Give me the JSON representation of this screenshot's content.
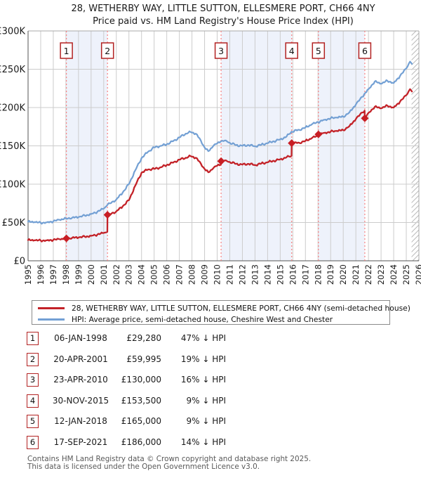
{
  "title": {
    "line1": "28, WETHERBY WAY, LITTLE SUTTON, ELLESMERE PORT, CH66 4NY",
    "line2": "Price paid vs. HM Land Registry's House Price Index (HPI)"
  },
  "legend": {
    "price_label": "28, WETHERBY WAY, LITTLE SUTTON, ELLESMERE PORT, CH66 4NY (semi-detached house)",
    "hpi_label": "HPI: Average price, semi-detached house, Cheshire West and Chester"
  },
  "footer": {
    "line1": "Contains HM Land Registry data © Crown copyright and database right 2025.",
    "line2": "This data is licensed under the Open Government Licence v3.0."
  },
  "colors": {
    "price_line": "#c32228",
    "hpi_line": "#73a0d4",
    "band": "#eef2fb",
    "grid": "#cccccc",
    "sale_dash": "#f88080",
    "marker_box_border": "#b22222",
    "marker_fill": "#c81e24",
    "axis_text": "#1a1a1a",
    "spine_dark": "#555555",
    "spine_light": "#aaaaaa",
    "hatch": "#bbbbbb"
  },
  "sales_table": {
    "rows": [
      {
        "n": "1",
        "date": "06-JAN-1998",
        "price": "£29,280",
        "vs_hpi": "47% ↓ HPI"
      },
      {
        "n": "2",
        "date": "20-APR-2001",
        "price": "£59,995",
        "vs_hpi": "19% ↓ HPI"
      },
      {
        "n": "3",
        "date": "23-APR-2010",
        "price": "£130,000",
        "vs_hpi": "16% ↓ HPI"
      },
      {
        "n": "4",
        "date": "30-NOV-2015",
        "price": "£153,500",
        "vs_hpi": "9% ↓ HPI"
      },
      {
        "n": "5",
        "date": "12-JAN-2018",
        "price": "£165,000",
        "vs_hpi": "9% ↓ HPI"
      },
      {
        "n": "6",
        "date": "17-SEP-2021",
        "price": "£186,000",
        "vs_hpi": "14% ↓ HPI"
      }
    ]
  },
  "chart_data": {
    "type": "line",
    "title": "28, WETHERBY WAY, LITTLE SUTTON, ELLESMERE PORT, CH66 4NY — Price paid vs. HPI",
    "units": "GBP",
    "xlim": [
      1995,
      2026
    ],
    "ylim": [
      0,
      300000
    ],
    "grid": true,
    "x_ticks": [
      1995,
      1996,
      1997,
      1998,
      1999,
      2000,
      2001,
      2002,
      2003,
      2004,
      2005,
      2006,
      2007,
      2008,
      2009,
      2010,
      2011,
      2012,
      2013,
      2014,
      2015,
      2016,
      2017,
      2018,
      2019,
      2020,
      2021,
      2022,
      2023,
      2024,
      2025,
      2026
    ],
    "y_ticks": [
      [
        0,
        "£0"
      ],
      [
        50000,
        "£50K"
      ],
      [
        100000,
        "£100K"
      ],
      [
        150000,
        "£150K"
      ],
      [
        200000,
        "£200K"
      ],
      [
        250000,
        "£250K"
      ],
      [
        300000,
        "£300K"
      ]
    ],
    "series": [
      {
        "name": "price_paid",
        "points": [
          [
            1995,
            27000
          ],
          [
            1995.5,
            26700
          ],
          [
            1996,
            26400
          ],
          [
            1996.5,
            26700
          ],
          [
            1997,
            27200
          ],
          [
            1997.5,
            28200
          ],
          [
            1998.04,
            29280
          ],
          [
            1998.5,
            30000
          ],
          [
            1999,
            30400
          ],
          [
            1999.5,
            31500
          ],
          [
            2000,
            32600
          ],
          [
            2000.5,
            34200
          ],
          [
            2001,
            36300
          ],
          [
            2001.29,
            37800
          ],
          [
            2001.3,
            59995
          ],
          [
            2001.5,
            61000
          ],
          [
            2002,
            64500
          ],
          [
            2002.5,
            71000
          ],
          [
            2003,
            79000
          ],
          [
            2003.5,
            98000
          ],
          [
            2004,
            115000
          ],
          [
            2004.5,
            119000
          ],
          [
            2005,
            120000
          ],
          [
            2005.5,
            122000
          ],
          [
            2006,
            125000
          ],
          [
            2006.5,
            128000
          ],
          [
            2007,
            132000
          ],
          [
            2007.5,
            134500
          ],
          [
            2007.9,
            136500
          ],
          [
            2008.3,
            134500
          ],
          [
            2008.7,
            127000
          ],
          [
            2009,
            120000
          ],
          [
            2009.3,
            115500
          ],
          [
            2009.7,
            121000
          ],
          [
            2010,
            124000
          ],
          [
            2010.3,
            126000
          ],
          [
            2010.31,
            130000
          ],
          [
            2010.7,
            131000
          ],
          [
            2011,
            129000
          ],
          [
            2011.5,
            126500
          ],
          [
            2012,
            125500
          ],
          [
            2012.5,
            126500
          ],
          [
            2013,
            125000
          ],
          [
            2013.5,
            127000
          ],
          [
            2014,
            128500
          ],
          [
            2014.5,
            130500
          ],
          [
            2015,
            132500
          ],
          [
            2015.5,
            135000
          ],
          [
            2015.9,
            137000
          ],
          [
            2015.91,
            153500
          ],
          [
            2016.5,
            154000
          ],
          [
            2017,
            156500
          ],
          [
            2017.5,
            160000
          ],
          [
            2018.02,
            163500
          ],
          [
            2018.03,
            165000
          ],
          [
            2018.5,
            167000
          ],
          [
            2019,
            168500
          ],
          [
            2019.5,
            169500
          ],
          [
            2020,
            170500
          ],
          [
            2020.5,
            176000
          ],
          [
            2021,
            185000
          ],
          [
            2021.5,
            193500
          ],
          [
            2021.7,
            196000
          ],
          [
            2021.71,
            186000
          ],
          [
            2022,
            193000
          ],
          [
            2022.5,
            201000
          ],
          [
            2023,
            199000
          ],
          [
            2023.5,
            202500
          ],
          [
            2024,
            200000
          ],
          [
            2024.5,
            207500
          ],
          [
            2025,
            216000
          ],
          [
            2025.3,
            224000
          ],
          [
            2025.45,
            221000
          ]
        ]
      },
      {
        "name": "hpi",
        "points": [
          [
            1995,
            51000
          ],
          [
            1995.5,
            50500
          ],
          [
            1996,
            49500
          ],
          [
            1996.5,
            50200
          ],
          [
            1997,
            51500
          ],
          [
            1997.5,
            53500
          ],
          [
            1998,
            55200
          ],
          [
            1998.5,
            56200
          ],
          [
            1999,
            57000
          ],
          [
            1999.5,
            59000
          ],
          [
            2000,
            61000
          ],
          [
            2000.5,
            64000
          ],
          [
            2001,
            68000
          ],
          [
            2001.3,
            73000
          ],
          [
            2001.5,
            75000
          ],
          [
            2002,
            80000
          ],
          [
            2002.5,
            89000
          ],
          [
            2003,
            100000
          ],
          [
            2003.5,
            118000
          ],
          [
            2004,
            134000
          ],
          [
            2004.5,
            142000
          ],
          [
            2005,
            148000
          ],
          [
            2005.5,
            150000
          ],
          [
            2006,
            152000
          ],
          [
            2006.5,
            156000
          ],
          [
            2007,
            161000
          ],
          [
            2007.5,
            166000
          ],
          [
            2007.9,
            168000
          ],
          [
            2008.3,
            166000
          ],
          [
            2008.7,
            157000
          ],
          [
            2009,
            148000
          ],
          [
            2009.3,
            143000
          ],
          [
            2009.7,
            150000
          ],
          [
            2010,
            153000
          ],
          [
            2010.3,
            156000
          ],
          [
            2010.7,
            157000
          ],
          [
            2011,
            154000
          ],
          [
            2011.5,
            151000
          ],
          [
            2012,
            150000
          ],
          [
            2012.5,
            151000
          ],
          [
            2013,
            149500
          ],
          [
            2013.5,
            151500
          ],
          [
            2014,
            153500
          ],
          [
            2014.5,
            156000
          ],
          [
            2015,
            158500
          ],
          [
            2015.5,
            162000
          ],
          [
            2015.9,
            168500
          ],
          [
            2016.5,
            171000
          ],
          [
            2017,
            174000
          ],
          [
            2017.5,
            178000
          ],
          [
            2018,
            181000
          ],
          [
            2018.5,
            184000
          ],
          [
            2019,
            186000
          ],
          [
            2019.5,
            187000
          ],
          [
            2020,
            188000
          ],
          [
            2020.5,
            194000
          ],
          [
            2021,
            204000
          ],
          [
            2021.5,
            214000
          ],
          [
            2022,
            224000
          ],
          [
            2022.5,
            234000
          ],
          [
            2023,
            231000
          ],
          [
            2023.5,
            235000
          ],
          [
            2024,
            232000
          ],
          [
            2024.5,
            241000
          ],
          [
            2025,
            251000
          ],
          [
            2025.3,
            260000
          ],
          [
            2025.45,
            257000
          ]
        ]
      }
    ],
    "sale_markers": [
      {
        "n": "1",
        "year": 1998.04,
        "price": 29280
      },
      {
        "n": "2",
        "year": 2001.3,
        "price": 59995
      },
      {
        "n": "3",
        "year": 2010.31,
        "price": 130000
      },
      {
        "n": "4",
        "year": 2015.91,
        "price": 153500
      },
      {
        "n": "5",
        "year": 2018.03,
        "price": 165000
      },
      {
        "n": "6",
        "year": 2021.71,
        "price": 186000
      }
    ],
    "shaded_bands": [
      [
        1998.04,
        2001.3
      ],
      [
        2010.31,
        2015.91
      ],
      [
        2018.03,
        2021.71
      ]
    ],
    "hatch_region": [
      2025.42,
      2026
    ],
    "legend_position": "below"
  }
}
